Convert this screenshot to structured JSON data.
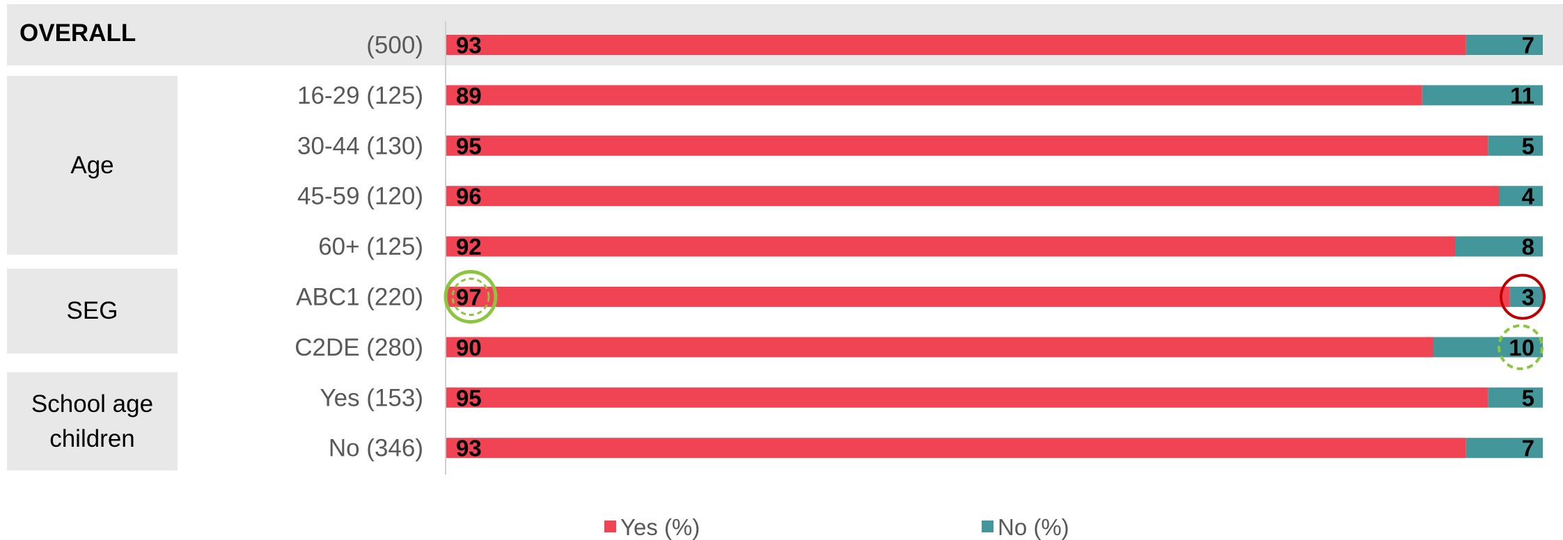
{
  "groups": {
    "overall": "OVERALL",
    "age": "Age",
    "seg": "SEG",
    "school_line1": "School age",
    "school_line2": "children"
  },
  "legend": {
    "yes": "Yes (%)",
    "no": "No (%)"
  },
  "colors": {
    "yes": "#f04454",
    "no": "#43979a",
    "band": "#e8e8e8",
    "highlight_green": "#8cc63f",
    "highlight_red": "#c00000"
  },
  "chart_data": {
    "type": "bar",
    "orientation": "horizontal",
    "stacked": true,
    "xlim": [
      0,
      100
    ],
    "categories": [
      "(500)",
      "16-29 (125)",
      "30-44 (130)",
      "45-59 (120)",
      "60+ (125)",
      "ABC1 (220)",
      "C2DE (280)",
      "Yes (153)",
      "No (346)"
    ],
    "series": [
      {
        "name": "Yes (%)",
        "values": [
          93,
          89,
          95,
          96,
          92,
          97,
          90,
          95,
          93
        ]
      },
      {
        "name": "No (%)",
        "values": [
          7,
          11,
          5,
          4,
          8,
          3,
          10,
          5,
          7
        ]
      }
    ],
    "legend_position": "bottom",
    "highlights": [
      {
        "category": "ABC1 (220)",
        "series": "Yes (%)",
        "style": "green-circle"
      },
      {
        "category": "ABC1 (220)",
        "series": "No (%)",
        "style": "red-circle"
      },
      {
        "category": "C2DE (280)",
        "series": "No (%)",
        "style": "green-dashed-circle"
      }
    ]
  }
}
